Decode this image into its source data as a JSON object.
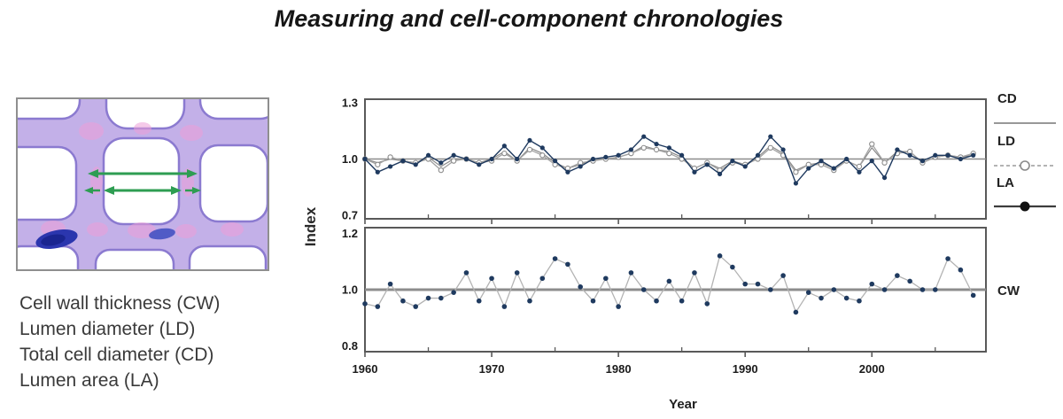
{
  "title": "Measuring and cell-component chronologies",
  "micrograph": {
    "description_labels": [
      "Cell wall thickness (CW)",
      "Lumen diameter (LD)",
      "Total cell diameter (CD)",
      "Lumen area (LA)"
    ],
    "arrow_color": "#2e9d52"
  },
  "colors": {
    "la_series": "#1f3a5f",
    "ld_series": "#a3a3a3",
    "cd_series": "#8a8a8a",
    "cw_dots": "#1f3a5f",
    "cw_line": "#b3b3b3",
    "reference_line": "#8c8c8c",
    "plot_border": "#595959",
    "tick_text": "#1a1a1a"
  },
  "chart_data": [
    {
      "type": "line",
      "title": "",
      "xlabel": "",
      "ylabel": "Index",
      "x_range": [
        1960,
        2008
      ],
      "x_axis_range": [
        1960,
        2009
      ],
      "y_ticks": [
        "1.3",
        "1.0",
        "0.7"
      ],
      "y_tick_values": [
        1.3,
        1.0,
        0.7
      ],
      "ylim": [
        0.68,
        1.32
      ],
      "reference_line": 1.0,
      "grid": "off",
      "legend_position": "right",
      "series": [
        {
          "name": "CD",
          "style": "solid-gray-line",
          "values": [
            1.0,
            0.98,
            1.0,
            0.99,
            0.98,
            1.01,
            0.96,
            1.0,
            1.0,
            0.98,
            1.0,
            1.04,
            0.99,
            1.06,
            1.03,
            0.98,
            0.95,
            0.97,
            1.0,
            1.0,
            1.01,
            1.03,
            1.07,
            1.05,
            1.04,
            1.01,
            0.95,
            0.98,
            0.95,
            0.99,
            0.97,
            1.01,
            1.07,
            1.03,
            0.94,
            0.97,
            0.98,
            0.95,
            0.99,
            0.96,
            1.06,
            0.98,
            1.04,
            1.04,
            0.98,
            1.01,
            1.02,
            1.01,
            1.02
          ]
        },
        {
          "name": "LD",
          "style": "dashed-open-circle",
          "values": [
            1.0,
            0.97,
            1.01,
            0.99,
            0.98,
            1.0,
            0.94,
            0.99,
            1.0,
            0.98,
            0.99,
            1.03,
            0.99,
            1.05,
            1.02,
            0.97,
            0.95,
            0.98,
            0.99,
            1.0,
            1.01,
            1.03,
            1.06,
            1.05,
            1.03,
            1.0,
            0.95,
            0.98,
            0.94,
            0.98,
            0.97,
            1.0,
            1.06,
            1.02,
            0.93,
            0.97,
            0.97,
            0.94,
            0.99,
            0.96,
            1.08,
            0.98,
            1.03,
            1.04,
            0.98,
            1.01,
            1.02,
            1.01,
            1.03
          ]
        },
        {
          "name": "LA",
          "style": "solid-filled-circle",
          "values": [
            1.0,
            0.93,
            0.96,
            0.99,
            0.97,
            1.02,
            0.98,
            1.02,
            1.0,
            0.97,
            1.0,
            1.07,
            1.0,
            1.1,
            1.06,
            0.99,
            0.93,
            0.96,
            1.0,
            1.01,
            1.02,
            1.05,
            1.12,
            1.08,
            1.06,
            1.02,
            0.93,
            0.97,
            0.92,
            0.99,
            0.96,
            1.02,
            1.12,
            1.05,
            0.87,
            0.95,
            0.99,
            0.95,
            1.0,
            0.93,
            0.99,
            0.9,
            1.05,
            1.02,
            0.99,
            1.02,
            1.02,
            1.0,
            1.02
          ]
        }
      ]
    },
    {
      "type": "line",
      "title": "",
      "xlabel": "Year",
      "ylabel": "Index",
      "x_range": [
        1960,
        2008
      ],
      "x_axis_range": [
        1960,
        2009
      ],
      "x_tick_labels": [
        "1960",
        "1970",
        "1980",
        "1990",
        "2000"
      ],
      "x_tick_values": [
        1960,
        1970,
        1980,
        1990,
        2000
      ],
      "minor_tick_values": [
        1965,
        1975,
        1985,
        1995,
        2005
      ],
      "y_ticks": [
        "1.2",
        "1.0",
        "0.8"
      ],
      "y_tick_values": [
        1.2,
        1.0,
        0.8
      ],
      "ylim": [
        0.78,
        1.22
      ],
      "reference_line": 1.0,
      "grid": "off",
      "legend_position": "right",
      "series": [
        {
          "name": "CW",
          "style": "gray-line-filled-dots",
          "values": [
            0.95,
            0.94,
            1.02,
            0.96,
            0.94,
            0.97,
            0.97,
            0.99,
            1.06,
            0.96,
            1.04,
            0.94,
            1.06,
            0.96,
            1.04,
            1.11,
            1.09,
            1.01,
            0.96,
            1.04,
            0.94,
            1.06,
            1.0,
            0.96,
            1.03,
            0.96,
            1.06,
            0.95,
            1.12,
            1.08,
            1.02,
            1.02,
            1.0,
            1.05,
            0.92,
            0.99,
            0.97,
            1.0,
            0.97,
            0.96,
            1.02,
            1.0,
            1.05,
            1.03,
            1.0,
            1.0,
            1.11,
            1.07,
            0.98
          ]
        }
      ]
    }
  ]
}
